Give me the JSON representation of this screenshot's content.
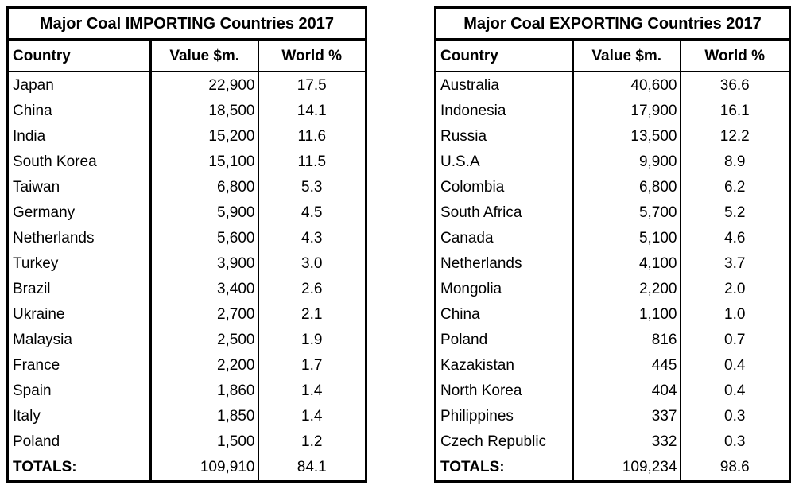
{
  "chart_data": [
    {
      "type": "table",
      "title": "Major Coal IMPORTING Countries 2017",
      "columns": [
        "Country",
        "Value $m.",
        "World %"
      ],
      "rows": [
        [
          "Japan",
          "22,900",
          "17.5"
        ],
        [
          "China",
          "18,500",
          "14.1"
        ],
        [
          "India",
          "15,200",
          "11.6"
        ],
        [
          "South Korea",
          "15,100",
          "11.5"
        ],
        [
          "Taiwan",
          "6,800",
          "5.3"
        ],
        [
          "Germany",
          "5,900",
          "4.5"
        ],
        [
          "Netherlands",
          "5,600",
          "4.3"
        ],
        [
          "Turkey",
          "3,900",
          "3.0"
        ],
        [
          "Brazil",
          "3,400",
          "2.6"
        ],
        [
          "Ukraine",
          "2,700",
          "2.1"
        ],
        [
          "Malaysia",
          "2,500",
          "1.9"
        ],
        [
          "France",
          "2,200",
          "1.7"
        ],
        [
          "Spain",
          "1,860",
          "1.4"
        ],
        [
          "Italy",
          "1,850",
          "1.4"
        ],
        [
          "Poland",
          "1,500",
          "1.2"
        ]
      ],
      "totals": [
        "TOTALS:",
        "109,910",
        "84.1"
      ]
    },
    {
      "type": "table",
      "title": "Major Coal EXPORTING Countries 2017",
      "columns": [
        "Country",
        "Value $m.",
        "World %"
      ],
      "rows": [
        [
          "Australia",
          "40,600",
          "36.6"
        ],
        [
          "Indonesia",
          "17,900",
          "16.1"
        ],
        [
          "Russia",
          "13,500",
          "12.2"
        ],
        [
          "U.S.A",
          "9,900",
          "8.9"
        ],
        [
          "Colombia",
          "6,800",
          "6.2"
        ],
        [
          "South Africa",
          "5,700",
          "5.2"
        ],
        [
          "Canada",
          "5,100",
          "4.6"
        ],
        [
          "Netherlands",
          "4,100",
          "3.7"
        ],
        [
          "Mongolia",
          "2,200",
          "2.0"
        ],
        [
          "China",
          "1,100",
          "1.0"
        ],
        [
          "Poland",
          "816",
          "0.7"
        ],
        [
          "Kazakistan",
          "445",
          "0.4"
        ],
        [
          "North Korea",
          "404",
          "0.4"
        ],
        [
          "Philippines",
          "337",
          "0.3"
        ],
        [
          "Czech Republic",
          "332",
          "0.3"
        ]
      ],
      "totals": [
        "TOTALS:",
        "109,234",
        "98.6"
      ]
    }
  ],
  "colors": {
    "border": "#000000",
    "text": "#000000",
    "background": "#ffffff"
  }
}
